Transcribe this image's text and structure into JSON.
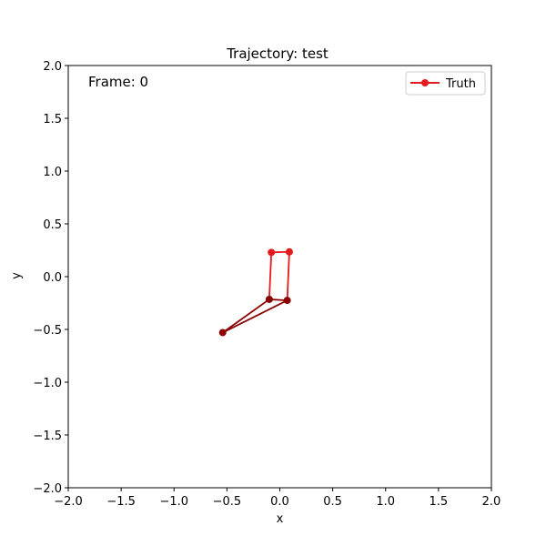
{
  "chart_data": {
    "type": "line",
    "title": "Trajectory: test",
    "xlabel": "x",
    "ylabel": "y",
    "xlim": [
      -2.0,
      2.0
    ],
    "ylim": [
      -2.0,
      2.0
    ],
    "xticks": [
      "−2.0",
      "−1.5",
      "−1.0",
      "−0.5",
      "0.0",
      "0.5",
      "1.0",
      "1.5",
      "2.0"
    ],
    "yticks": [
      "−2.0",
      "−1.5",
      "−1.0",
      "−0.5",
      "0.0",
      "0.5",
      "1.0",
      "1.5",
      "2.0"
    ],
    "xtick_values": [
      -2.0,
      -1.5,
      -1.0,
      -0.5,
      0.0,
      0.5,
      1.0,
      1.5,
      2.0
    ],
    "ytick_values": [
      -2.0,
      -1.5,
      -1.0,
      -0.5,
      0.0,
      0.5,
      1.0,
      1.5,
      2.0
    ],
    "grid": false,
    "legend_position": "top-right",
    "annotation": "Frame: 0",
    "series": [
      {
        "name": "Truth",
        "color": "#e41a1c",
        "dark_color": "#8b0000",
        "points": [
          {
            "x": -0.08,
            "y": 0.23
          },
          {
            "x": 0.09,
            "y": 0.235
          },
          {
            "x": 0.07,
            "y": -0.225
          },
          {
            "x": -0.1,
            "y": -0.215
          },
          {
            "x": -0.54,
            "y": -0.53
          }
        ],
        "dark_segments": [
          [
            2,
            3
          ],
          [
            3,
            4
          ],
          [
            4,
            2
          ]
        ],
        "light_segments": [
          [
            0,
            1
          ],
          [
            1,
            2
          ],
          [
            3,
            0
          ]
        ],
        "dark_points": [
          2,
          3,
          4
        ],
        "light_points": [
          0,
          1
        ]
      }
    ]
  }
}
